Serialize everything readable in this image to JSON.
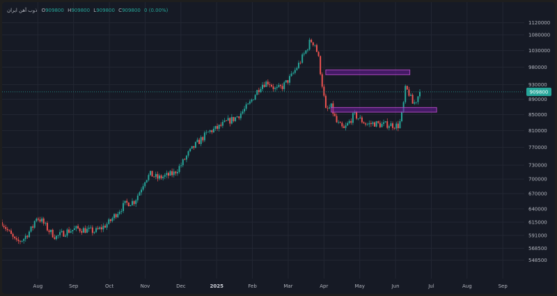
{
  "colors": {
    "background": "#161a25",
    "grid": "#232733",
    "text": "#b2b5be",
    "up": "#26a69a",
    "down": "#ef5350",
    "last_price_line": "#26a69a",
    "zone_fill": "#6a1b9a",
    "zone_border": "#ab47bc"
  },
  "legend": {
    "symbol_title": "ذوب آهن ایران",
    "open_label": "O",
    "open_value": "909800",
    "high_label": "H",
    "high_value": "909800",
    "low_label": "L",
    "low_value": "909800",
    "close_label": "C",
    "close_value": "909800",
    "change": "0 (0.00%)"
  },
  "chart_data": {
    "type": "candlestick",
    "log_scale": true,
    "grid": true,
    "y_range": [
      530000,
      1150000
    ],
    "y_tick_labels": [
      "1120000",
      "1080000",
      "1030000",
      "980000",
      "930000",
      "890000",
      "850000",
      "810000",
      "770000",
      "730000",
      "700000",
      "670000",
      "640000",
      "615000",
      "591000",
      "568500",
      "548500"
    ],
    "x_tick_labels": [
      {
        "label": "Aug",
        "month_index": 1,
        "bold": false
      },
      {
        "label": "Sep",
        "month_index": 2,
        "bold": false
      },
      {
        "label": "Oct",
        "month_index": 3,
        "bold": false
      },
      {
        "label": "Nov",
        "month_index": 4,
        "bold": false
      },
      {
        "label": "Dec",
        "month_index": 5,
        "bold": false
      },
      {
        "label": "2025",
        "month_index": 6,
        "bold": true
      },
      {
        "label": "Feb",
        "month_index": 7,
        "bold": false
      },
      {
        "label": "Mar",
        "month_index": 8,
        "bold": false
      },
      {
        "label": "Apr",
        "month_index": 9,
        "bold": false
      },
      {
        "label": "May",
        "month_index": 10,
        "bold": false
      },
      {
        "label": "Jun",
        "month_index": 11,
        "bold": false
      },
      {
        "label": "Jul",
        "month_index": 12,
        "bold": false
      },
      {
        "label": "Aug",
        "month_index": 13,
        "bold": false
      },
      {
        "label": "Sep",
        "month_index": 14,
        "bold": false
      }
    ],
    "x_month_range": [
      0,
      14.6
    ],
    "last_price": 909800,
    "last_price_label": "909800",
    "price_path": [
      [
        0.0,
        615000
      ],
      [
        0.15,
        600000
      ],
      [
        0.4,
        578000
      ],
      [
        0.6,
        585000
      ],
      [
        0.85,
        605000
      ],
      [
        0.95,
        625000
      ],
      [
        1.1,
        618000
      ],
      [
        1.3,
        600000
      ],
      [
        1.5,
        588000
      ],
      [
        1.8,
        598000
      ],
      [
        2.1,
        603000
      ],
      [
        2.4,
        600000
      ],
      [
        2.6,
        598000
      ],
      [
        2.8,
        605000
      ],
      [
        3.0,
        615000
      ],
      [
        3.2,
        632000
      ],
      [
        3.45,
        650000
      ],
      [
        3.7,
        655000
      ],
      [
        3.85,
        675000
      ],
      [
        4.0,
        700000
      ],
      [
        4.15,
        710000
      ],
      [
        4.35,
        702000
      ],
      [
        4.6,
        707000
      ],
      [
        4.8,
        712000
      ],
      [
        5.0,
        730000
      ],
      [
        5.2,
        755000
      ],
      [
        5.4,
        775000
      ],
      [
        5.6,
        792000
      ],
      [
        5.8,
        808000
      ],
      [
        6.0,
        815000
      ],
      [
        6.3,
        832000
      ],
      [
        6.5,
        840000
      ],
      [
        6.7,
        855000
      ],
      [
        6.9,
        875000
      ],
      [
        7.05,
        900000
      ],
      [
        7.25,
        930000
      ],
      [
        7.45,
        938000
      ],
      [
        7.65,
        915000
      ],
      [
        7.85,
        925000
      ],
      [
        8.1,
        955000
      ],
      [
        8.3,
        990000
      ],
      [
        8.5,
        1030000
      ],
      [
        8.62,
        1062000
      ],
      [
        8.75,
        1050000
      ],
      [
        8.85,
        1005000
      ],
      [
        8.95,
        930000
      ],
      [
        9.05,
        860000
      ],
      [
        9.2,
        870000
      ],
      [
        9.35,
        830000
      ],
      [
        9.55,
        812000
      ],
      [
        9.7,
        830000
      ],
      [
        9.85,
        850000
      ],
      [
        10.0,
        838000
      ],
      [
        10.2,
        825000
      ],
      [
        10.4,
        828000
      ],
      [
        10.6,
        824000
      ],
      [
        10.8,
        825000
      ],
      [
        11.0,
        822000
      ],
      [
        11.1,
        822000
      ],
      [
        11.2,
        860000
      ],
      [
        11.28,
        920000
      ],
      [
        11.38,
        905000
      ],
      [
        11.48,
        878000
      ],
      [
        11.55,
        882000
      ],
      [
        11.68,
        909800
      ]
    ],
    "zones": [
      {
        "x_start": 9.05,
        "x_end": 11.4,
        "y_low": 958000,
        "y_high": 972000
      },
      {
        "x_start": 9.2,
        "x_end": 12.15,
        "y_low": 856000,
        "y_high": 868000
      }
    ]
  }
}
